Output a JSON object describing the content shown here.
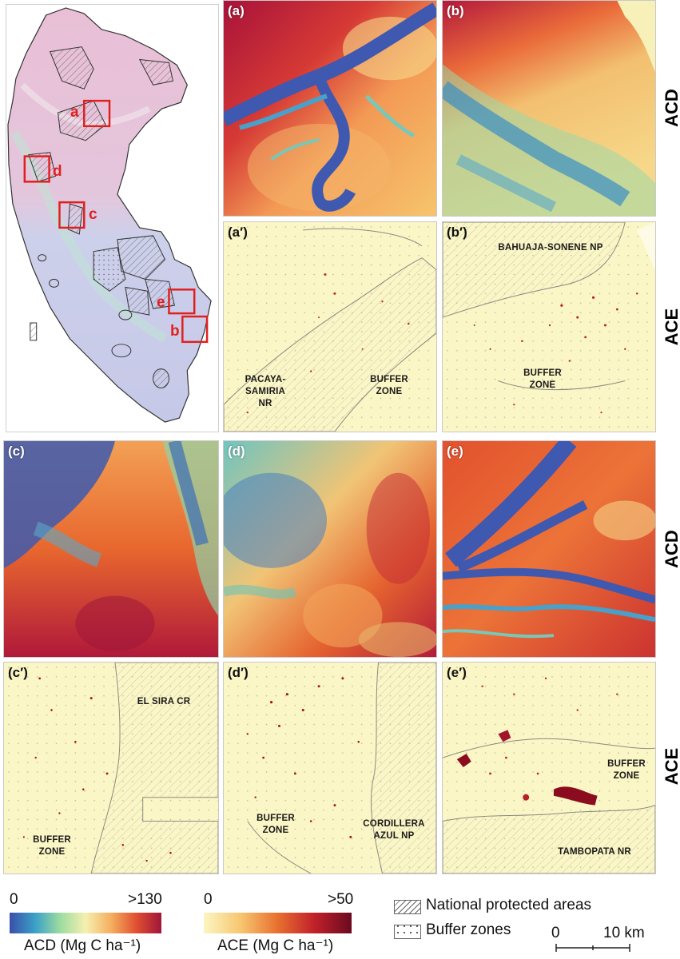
{
  "panels": {
    "a": {
      "label": "(a)"
    },
    "b": {
      "label": "(b)"
    },
    "a_prime": {
      "label": "(a′)",
      "names": [
        "PACAYA-\nSAMIRIA\nNR",
        "BUFFER\nZONE"
      ]
    },
    "b_prime": {
      "label": "(b′)",
      "names": [
        "BAHUAJA-SONENE NP",
        "BUFFER\nZONE"
      ]
    },
    "c": {
      "label": "(c)"
    },
    "d": {
      "label": "(d)"
    },
    "e": {
      "label": "(e)"
    },
    "c_prime": {
      "label": "(c′)",
      "names": [
        "EL SIRA CR",
        "BUFFER\nZONE"
      ]
    },
    "d_prime": {
      "label": "(d′)",
      "names": [
        "BUFFER\nZONE",
        "CORDILLERA\nAZUL NP"
      ]
    },
    "e_prime": {
      "label": "(e′)",
      "names": [
        "BUFFER\nZONE",
        "TAMBOPATA NR"
      ]
    }
  },
  "row_labels": {
    "top_acd": "ACD",
    "top_ace": "ACE",
    "bottom_acd": "ACD",
    "bottom_ace": "ACE"
  },
  "overview": {
    "regions": [
      "a",
      "b",
      "c",
      "d",
      "e"
    ]
  },
  "legend": {
    "acd": {
      "min": "0",
      "max": ">130",
      "title": "ACD (Mg C ha⁻¹)",
      "colors": [
        "#3a4fa8",
        "#3aa0c8",
        "#9ddca0",
        "#f5f0b0",
        "#f5b060",
        "#e05030",
        "#a0153a"
      ]
    },
    "ace": {
      "min": "0",
      "max": ">50",
      "title": "ACE (Mg C ha⁻¹)",
      "colors": [
        "#fcf6c0",
        "#f7c670",
        "#e8702f",
        "#c0202a",
        "#6a0a20"
      ]
    },
    "protected": "National protected areas",
    "buffer": "Buffer zones",
    "scale": {
      "start": "0",
      "end": "10 km"
    }
  }
}
